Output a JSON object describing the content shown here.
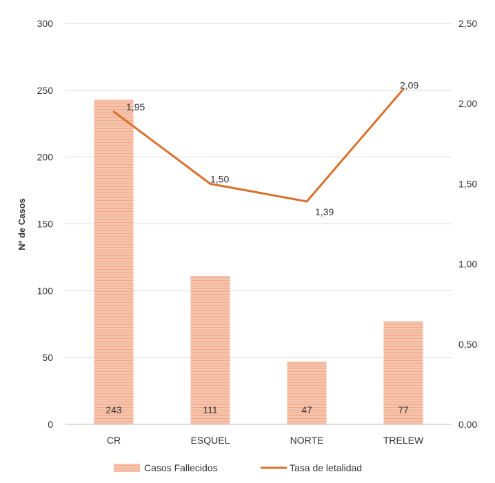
{
  "chart_data": {
    "type": "bar",
    "title": "",
    "categories": [
      "CR",
      "ESQUEL",
      "NORTE",
      "TRELEW"
    ],
    "series": [
      {
        "name": "Casos Fallecidos",
        "type": "bar",
        "axis": "left",
        "values": [
          243,
          111,
          47,
          77
        ],
        "labels": [
          "243",
          "111",
          "47",
          "77"
        ],
        "color": "#f6c3ad"
      },
      {
        "name": "Tasa de letalidad",
        "type": "line",
        "axis": "right",
        "values": [
          1.95,
          1.5,
          1.39,
          2.09
        ],
        "labels": [
          "1,95",
          "1,50",
          "1,39",
          "2,09"
        ],
        "color": "#d9702b"
      }
    ],
    "ylabel": "Nº de Casos",
    "y2label": "",
    "xlabel": "",
    "ylim": [
      0,
      300
    ],
    "y2lim": [
      0,
      2.5
    ],
    "yticks": [
      "0",
      "50",
      "100",
      "150",
      "200",
      "250",
      "300"
    ],
    "y2ticks": [
      "0,00",
      "0,50",
      "1,00",
      "1,50",
      "2,00",
      "2,50"
    ],
    "grid": true,
    "legend_position": "bottom"
  }
}
